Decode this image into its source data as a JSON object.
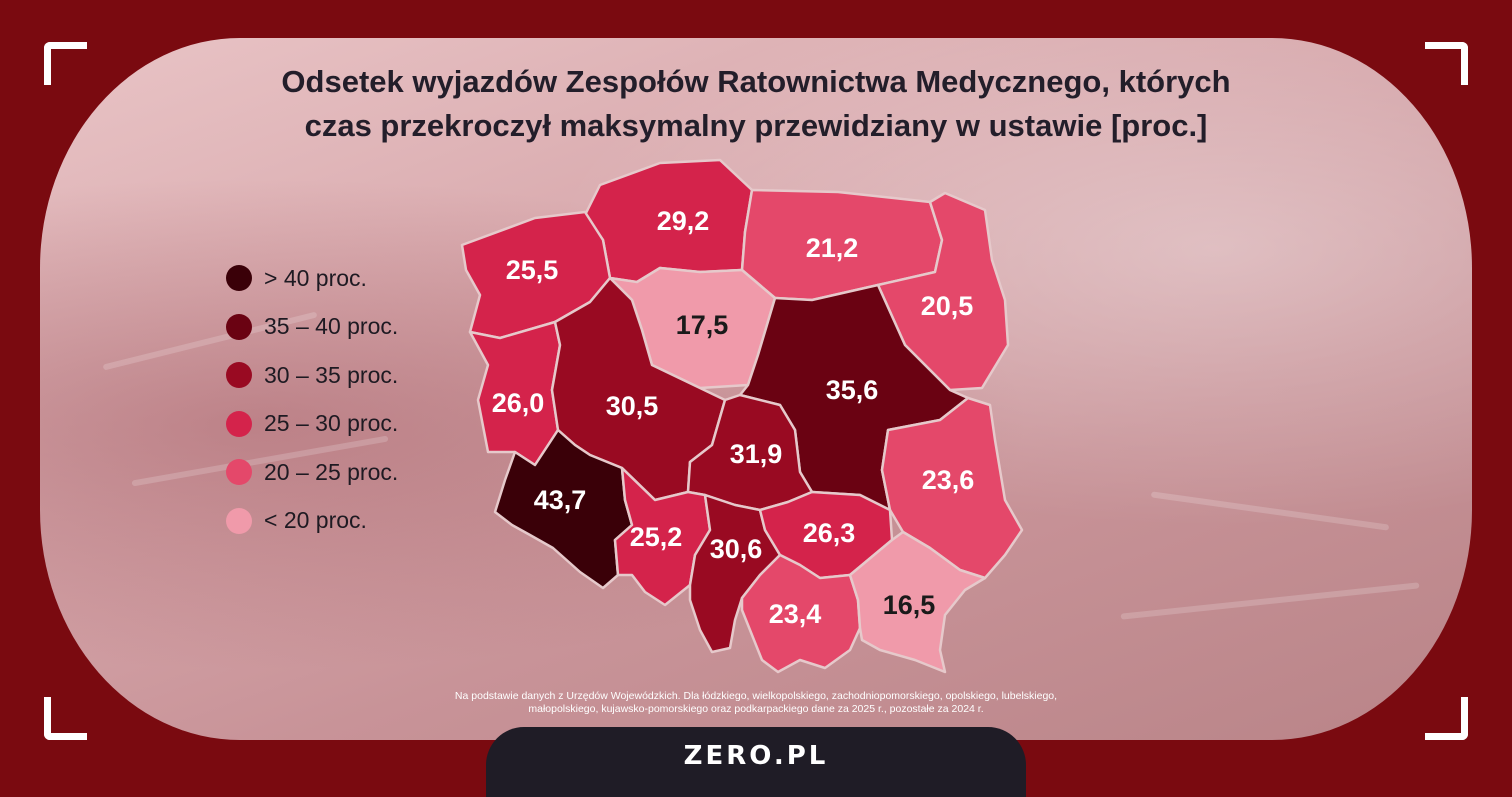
{
  "title": {
    "line1": "Odsetek wyjazdów Zespołów Ratownictwa Medycznego, których",
    "line2": "czas przekroczył maksymalny przewidziany w ustawie [proc.]"
  },
  "legend": [
    {
      "label": "> 40 proc.",
      "color": "#3a0008"
    },
    {
      "label": "35 – 40 proc.",
      "color": "#6a0212"
    },
    {
      "label": "30 – 35 proc.",
      "color": "#990a22"
    },
    {
      "label": "25 – 30 proc.",
      "color": "#d4234b"
    },
    {
      "label": "20 – 25 proc.",
      "color": "#e4486a"
    },
    {
      "label": "< 20 proc.",
      "color": "#f09aaa"
    }
  ],
  "regions": [
    {
      "name": "pomorskie",
      "value": "29,2",
      "color": "#d4234b",
      "text_color": "#ffffff"
    },
    {
      "name": "zachodniopomorskie",
      "value": "25,5",
      "color": "#d4234b",
      "text_color": "#ffffff"
    },
    {
      "name": "warmińsko-mazurskie",
      "value": "21,2",
      "color": "#e4486a",
      "text_color": "#ffffff"
    },
    {
      "name": "podlaskie",
      "value": "20,5",
      "color": "#e4486a",
      "text_color": "#ffffff"
    },
    {
      "name": "kujawsko-pomorskie",
      "value": "17,5",
      "color": "#f09aaa",
      "text_color": "#1a1a1a"
    },
    {
      "name": "lubuskie",
      "value": "26,0",
      "color": "#d4234b",
      "text_color": "#ffffff"
    },
    {
      "name": "wielkopolskie",
      "value": "30,5",
      "color": "#990a22",
      "text_color": "#ffffff"
    },
    {
      "name": "mazowieckie",
      "value": "35,6",
      "color": "#6a0212",
      "text_color": "#ffffff"
    },
    {
      "name": "łódzkie",
      "value": "31,9",
      "color": "#990a22",
      "text_color": "#ffffff"
    },
    {
      "name": "dolnośląskie",
      "value": "43,7",
      "color": "#3a0008",
      "text_color": "#ffffff"
    },
    {
      "name": "lubelskie",
      "value": "23,6",
      "color": "#e4486a",
      "text_color": "#ffffff"
    },
    {
      "name": "opolskie",
      "value": "25,2",
      "color": "#d4234b",
      "text_color": "#ffffff"
    },
    {
      "name": "śląskie",
      "value": "30,6",
      "color": "#990a22",
      "text_color": "#ffffff"
    },
    {
      "name": "świętokrzyskie",
      "value": "26,3",
      "color": "#d4234b",
      "text_color": "#ffffff"
    },
    {
      "name": "małopolskie",
      "value": "23,4",
      "color": "#e4486a",
      "text_color": "#ffffff"
    },
    {
      "name": "podkarpackie",
      "value": "16,5",
      "color": "#f09aaa",
      "text_color": "#1a1a1a"
    }
  ],
  "source": {
    "line1": "Na podstawie danych z Urzędów Wojewódzkich. Dla łódzkiego, wielkopolskiego, zachodniopomorskiego, opolskiego, lubelskiego,",
    "line2": "małopolskiego, kujawsko-pomorskiego oraz podkarpackiego dane za 2025 r., pozostałe za 2024 r."
  },
  "brand": "ZERO.PL"
}
